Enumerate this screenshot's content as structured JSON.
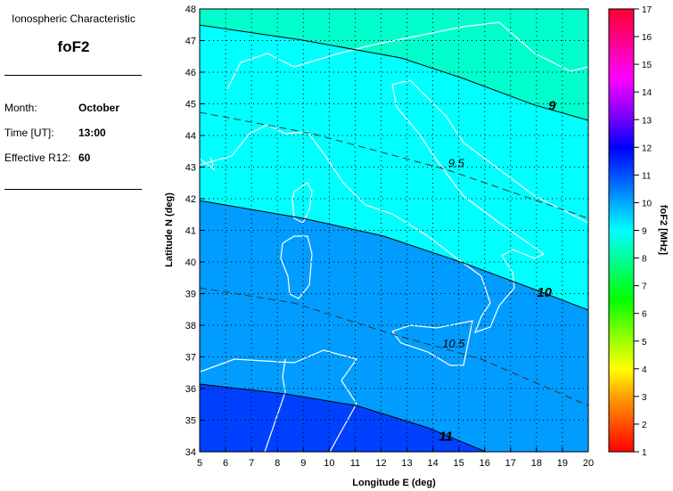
{
  "panel": {
    "heading": "Ionospheric Characteristic",
    "parameter": "foF2",
    "month_label": "Month:",
    "month_value": "October",
    "time_label": "Time [UT]:",
    "time_value": "13:00",
    "r12_label": "Effective R12:",
    "r12_value": "60"
  },
  "chart_data": {
    "type": "contour",
    "xlabel": "Longitude E (deg)",
    "ylabel": "Latitude N (deg)",
    "xlim": [
      5,
      20
    ],
    "ylim": [
      34,
      48
    ],
    "xticks": [
      "5",
      "6",
      "7",
      "8",
      "9",
      "10",
      "11",
      "12",
      "13",
      "14",
      "15",
      "16",
      "17",
      "18",
      "19",
      "20"
    ],
    "yticks": [
      "34",
      "35",
      "36",
      "37",
      "38",
      "39",
      "40",
      "41",
      "42",
      "43",
      "44",
      "45",
      "46",
      "47",
      "48"
    ],
    "grid": true,
    "band_colors": [
      "#00ffcc",
      "#00ffff",
      "#009cff",
      "#0040ff"
    ],
    "contours": [
      {
        "level": "9",
        "style": "solid",
        "label_at": [
          18.6,
          44.8
        ],
        "points": [
          [
            5,
            47.49
          ],
          [
            8.99,
            47.01
          ],
          [
            12.77,
            46.45
          ],
          [
            15.18,
            45.8
          ],
          [
            17.93,
            44.96
          ],
          [
            20,
            44.48
          ]
        ]
      },
      {
        "level": "9.5",
        "style": "dashed",
        "label_at": [
          14.9,
          43.0
        ],
        "points": [
          [
            5,
            44.73
          ],
          [
            9.33,
            44.06
          ],
          [
            14.49,
            42.93
          ],
          [
            20,
            41.38
          ]
        ]
      },
      {
        "level": "10",
        "style": "solid",
        "label_at": [
          18.3,
          38.9
        ],
        "points": [
          [
            5,
            41.94
          ],
          [
            8.99,
            41.38
          ],
          [
            12.09,
            40.82
          ],
          [
            15.18,
            39.97
          ],
          [
            17.93,
            39.13
          ],
          [
            20,
            38.48
          ]
        ]
      },
      {
        "level": "10.5",
        "style": "dashed",
        "label_at": [
          14.8,
          37.3
        ],
        "points": [
          [
            5,
            39.18
          ],
          [
            8.65,
            38.7
          ],
          [
            12.43,
            37.72
          ],
          [
            15.87,
            36.93
          ],
          [
            20,
            35.46
          ]
        ]
      },
      {
        "level": "11",
        "style": "solid",
        "label_at": [
          14.5,
          34.35
        ],
        "points": [
          [
            5,
            36.14
          ],
          [
            8.3,
            35.83
          ],
          [
            11.05,
            35.46
          ],
          [
            13.81,
            34.76
          ],
          [
            16.04,
            34
          ]
        ]
      }
    ],
    "colorbar": {
      "label": "foF2 [MHz]",
      "range": [
        1,
        17
      ],
      "ticks": [
        "1",
        "2",
        "3",
        "4",
        "5",
        "6",
        "7",
        "8",
        "9",
        "10",
        "11",
        "12",
        "13",
        "14",
        "15",
        "16",
        "17"
      ],
      "stops": [
        [
          1,
          "#ff0000"
        ],
        [
          2,
          "#ff5000"
        ],
        [
          3,
          "#ffa000"
        ],
        [
          4,
          "#ffff00"
        ],
        [
          5,
          "#a0ff00"
        ],
        [
          6.5,
          "#00ff00"
        ],
        [
          8,
          "#00ff9a"
        ],
        [
          9,
          "#00ffff"
        ],
        [
          10,
          "#00a8ff"
        ],
        [
          11,
          "#0050ff"
        ],
        [
          12,
          "#0000ff"
        ],
        [
          13,
          "#7000ff"
        ],
        [
          14.5,
          "#ff00ff"
        ],
        [
          16,
          "#ff0080"
        ],
        [
          17,
          "#ff0030"
        ]
      ]
    }
  }
}
